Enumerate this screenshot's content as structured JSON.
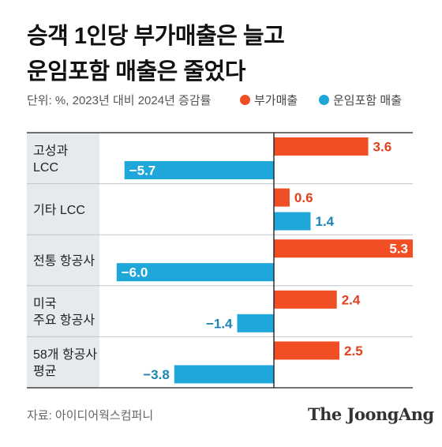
{
  "title_lines": [
    "승객 1인당 부가매출은 늘고",
    "운임포함 매출은 줄었다"
  ],
  "subtitle": "단위: %, 2023년 대비 2024년 증감률",
  "legend": [
    {
      "label": "부가매출",
      "color": "#f04e23"
    },
    {
      "label": "운임포함 매출",
      "color": "#1ea7d8"
    }
  ],
  "chart_data": {
    "type": "bar",
    "orientation": "horizontal",
    "xlim": [
      -6.0,
      5.3
    ],
    "categories": [
      [
        "고성과",
        "LCC"
      ],
      [
        "기타 LCC"
      ],
      [
        "전통 항공사"
      ],
      [
        "미국",
        "주요 항공사"
      ],
      [
        "58개 항공사",
        "평균"
      ]
    ],
    "series": [
      {
        "name": "부가매출",
        "color": "#f04e23",
        "values": [
          3.6,
          0.6,
          5.3,
          2.4,
          2.5
        ],
        "labels": [
          "3.6",
          "0.6",
          "5.3",
          "2.4",
          "2.5"
        ]
      },
      {
        "name": "운임포함 매출",
        "color": "#1ea7d8",
        "values": [
          -5.7,
          1.4,
          -6.0,
          -1.4,
          -3.8
        ],
        "labels": [
          "−5.7",
          "1.4",
          "−6.0",
          "−1.4",
          "−3.8"
        ]
      }
    ],
    "colors": {
      "label_bg": "#e6eaee",
      "label_red": "#e0401b",
      "label_blue": "#1b86b5"
    }
  },
  "source": "자료: 아이디어웍스컴퍼니",
  "brand": "The JoongAng"
}
